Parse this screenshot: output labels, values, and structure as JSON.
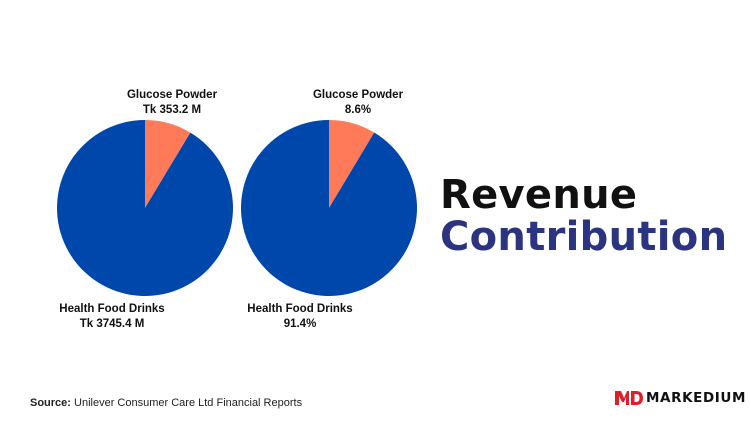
{
  "title": {
    "line1": "Revenue",
    "line2": "Contribution"
  },
  "source": {
    "label": "Source:",
    "text": "Unilever Consumer Care Ltd Financial Reports"
  },
  "brand": {
    "name": "MARKEDIUM",
    "logo_icon": "md-logo-icon",
    "logo_color": "#e11d2a"
  },
  "colors": {
    "health_food_drinks": "#0047ab",
    "glucose_powder": "#ff7a59",
    "title_dark": "#111111",
    "title_accent": "#2b3480"
  },
  "chart_data": [
    {
      "type": "pie",
      "categories": [
        "Glucose Powder",
        "Health Food Drinks"
      ],
      "values": [
        353.2,
        3745.4
      ],
      "data_labels": [
        {
          "name": "Glucose Powder",
          "value": "Tk 353.2 M"
        },
        {
          "name": "Health Food Drinks",
          "value": "Tk 3745.4 M"
        }
      ]
    },
    {
      "type": "pie",
      "categories": [
        "Glucose Powder",
        "Health Food Drinks"
      ],
      "values": [
        8.6,
        91.4
      ],
      "data_labels": [
        {
          "name": "Glucose Powder",
          "value": "8.6%"
        },
        {
          "name": "Health Food Drinks",
          "value": "91.4%"
        }
      ]
    }
  ]
}
